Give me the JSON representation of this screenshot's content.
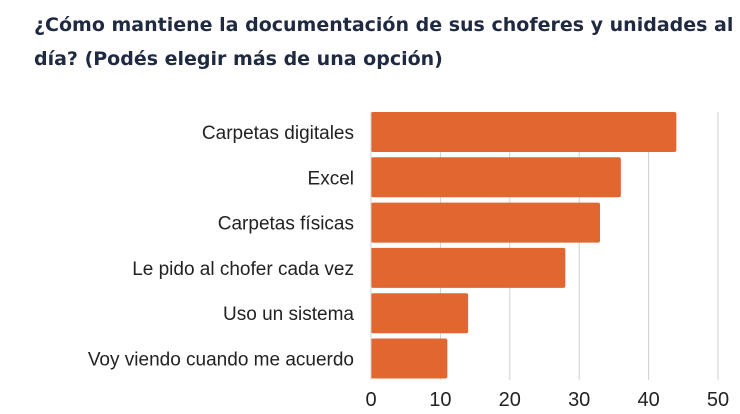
{
  "chart_data": {
    "type": "bar",
    "orientation": "horizontal",
    "title": "¿Cómo mantiene la documentación de sus choferes y unidades al día? (Podés elegir más de una opción)",
    "categories": [
      "Carpetas digitales",
      "Excel",
      "Carpetas físicas",
      "Le pido al chofer cada vez",
      "Uso un sistema",
      "Voy viendo cuando me acuerdo"
    ],
    "values": [
      44,
      36,
      33,
      28,
      14,
      11
    ],
    "xlabel": "",
    "ylabel": "",
    "xlim": [
      0,
      50
    ],
    "ticks": [
      "0",
      "10",
      "20",
      "30",
      "40",
      "50"
    ],
    "grid": true,
    "bar_color": "#E2662F"
  }
}
